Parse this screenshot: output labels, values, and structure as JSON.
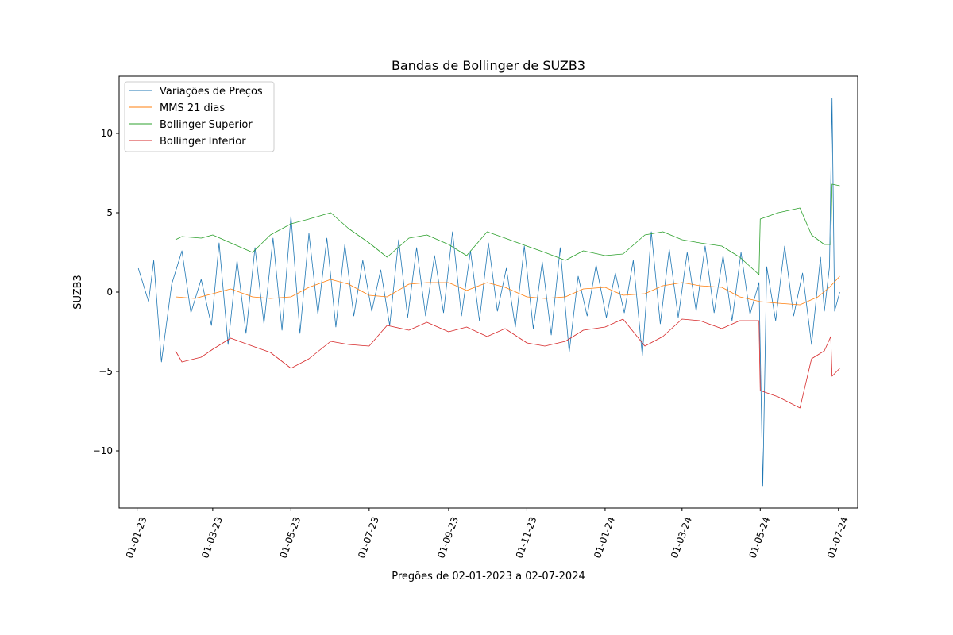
{
  "chart_data": {
    "type": "line",
    "title": "Bandas de Bollinger de SUZB3",
    "xlabel": "Pregões de 02-01-2023 a 02-07-2024",
    "ylabel": "SUZB3",
    "xlim": [
      "2022-12-18",
      "2024-07-16"
    ],
    "ylim": [
      -13.6,
      13.6
    ],
    "yticks": [
      -10,
      -5,
      0,
      5,
      10
    ],
    "yticklabels": [
      "−10",
      "−5",
      "0",
      "5",
      "10"
    ],
    "xticks": [
      "2023-01-01",
      "2023-03-01",
      "2023-05-01",
      "2023-07-01",
      "2023-09-01",
      "2023-11-01",
      "2024-01-01",
      "2024-03-01",
      "2024-05-01",
      "2024-07-01"
    ],
    "xticklabels": [
      "01-01-23",
      "01-03-23",
      "01-05-23",
      "01-07-23",
      "01-09-23",
      "01-11-23",
      "01-01-24",
      "01-03-24",
      "01-05-24",
      "01-07-24"
    ],
    "grid": false,
    "legend_position": "top-left",
    "series": [
      {
        "name": "Variações de Preços",
        "color": "#1f77b4",
        "points": [
          [
            "2023-01-02",
            1.5
          ],
          [
            "2023-01-10",
            -0.6
          ],
          [
            "2023-01-14",
            2.0
          ],
          [
            "2023-01-20",
            -4.4
          ],
          [
            "2023-01-28",
            0.5
          ],
          [
            "2023-02-05",
            2.6
          ],
          [
            "2023-02-12",
            -1.3
          ],
          [
            "2023-02-20",
            0.8
          ],
          [
            "2023-02-28",
            -2.1
          ],
          [
            "2023-03-06",
            3.1
          ],
          [
            "2023-03-13",
            -3.3
          ],
          [
            "2023-03-20",
            2.0
          ],
          [
            "2023-03-27",
            -2.6
          ],
          [
            "2023-04-03",
            2.8
          ],
          [
            "2023-04-10",
            -2.0
          ],
          [
            "2023-04-17",
            3.4
          ],
          [
            "2023-04-24",
            -2.4
          ],
          [
            "2023-05-01",
            4.8
          ],
          [
            "2023-05-08",
            -2.6
          ],
          [
            "2023-05-15",
            3.7
          ],
          [
            "2023-05-22",
            -1.4
          ],
          [
            "2023-05-29",
            3.4
          ],
          [
            "2023-06-05",
            -2.2
          ],
          [
            "2023-06-12",
            3.0
          ],
          [
            "2023-06-19",
            -1.5
          ],
          [
            "2023-06-26",
            2.0
          ],
          [
            "2023-07-03",
            -1.2
          ],
          [
            "2023-07-10",
            1.4
          ],
          [
            "2023-07-17",
            -2.1
          ],
          [
            "2023-07-24",
            3.3
          ],
          [
            "2023-07-31",
            -1.6
          ],
          [
            "2023-08-07",
            2.8
          ],
          [
            "2023-08-14",
            -1.5
          ],
          [
            "2023-08-21",
            2.3
          ],
          [
            "2023-08-28",
            -1.3
          ],
          [
            "2023-09-04",
            3.8
          ],
          [
            "2023-09-11",
            -1.5
          ],
          [
            "2023-09-18",
            2.6
          ],
          [
            "2023-09-25",
            -1.8
          ],
          [
            "2023-10-02",
            3.1
          ],
          [
            "2023-10-09",
            -1.2
          ],
          [
            "2023-10-16",
            1.5
          ],
          [
            "2023-10-23",
            -2.2
          ],
          [
            "2023-10-30",
            2.9
          ],
          [
            "2023-11-06",
            -2.3
          ],
          [
            "2023-11-13",
            1.9
          ],
          [
            "2023-11-20",
            -2.7
          ],
          [
            "2023-11-27",
            2.8
          ],
          [
            "2023-12-04",
            -3.8
          ],
          [
            "2023-12-11",
            1.0
          ],
          [
            "2023-12-18",
            -1.5
          ],
          [
            "2023-12-25",
            1.7
          ],
          [
            "2024-01-02",
            -1.6
          ],
          [
            "2024-01-09",
            1.2
          ],
          [
            "2024-01-16",
            -1.3
          ],
          [
            "2024-01-23",
            2.0
          ],
          [
            "2024-01-30",
            -4.0
          ],
          [
            "2024-02-06",
            3.8
          ],
          [
            "2024-02-13",
            -2.0
          ],
          [
            "2024-02-20",
            2.7
          ],
          [
            "2024-02-27",
            -1.6
          ],
          [
            "2024-03-05",
            2.5
          ],
          [
            "2024-03-12",
            -1.2
          ],
          [
            "2024-03-19",
            2.9
          ],
          [
            "2024-03-26",
            -1.3
          ],
          [
            "2024-04-02",
            2.3
          ],
          [
            "2024-04-09",
            -1.8
          ],
          [
            "2024-04-16",
            2.5
          ],
          [
            "2024-04-23",
            -1.4
          ],
          [
            "2024-04-30",
            0.6
          ],
          [
            "2024-05-03",
            -12.2
          ],
          [
            "2024-05-06",
            1.6
          ],
          [
            "2024-05-13",
            -1.8
          ],
          [
            "2024-05-20",
            2.9
          ],
          [
            "2024-05-27",
            -1.5
          ],
          [
            "2024-06-03",
            1.2
          ],
          [
            "2024-06-10",
            -3.3
          ],
          [
            "2024-06-17",
            2.2
          ],
          [
            "2024-06-20",
            -1.2
          ],
          [
            "2024-06-24",
            1.6
          ],
          [
            "2024-06-26",
            12.2
          ],
          [
            "2024-06-28",
            -1.2
          ],
          [
            "2024-07-02",
            0.0
          ]
        ]
      },
      {
        "name": "MMS 21 dias",
        "color": "#ff7f0e",
        "points": [
          [
            "2023-01-31",
            -0.3
          ],
          [
            "2023-02-15",
            -0.4
          ],
          [
            "2023-03-01",
            -0.1
          ],
          [
            "2023-03-15",
            0.2
          ],
          [
            "2023-04-01",
            -0.3
          ],
          [
            "2023-04-15",
            -0.4
          ],
          [
            "2023-05-01",
            -0.3
          ],
          [
            "2023-05-15",
            0.3
          ],
          [
            "2023-06-01",
            0.8
          ],
          [
            "2023-06-15",
            0.5
          ],
          [
            "2023-07-01",
            -0.2
          ],
          [
            "2023-07-15",
            -0.3
          ],
          [
            "2023-08-01",
            0.5
          ],
          [
            "2023-08-15",
            0.6
          ],
          [
            "2023-09-01",
            0.6
          ],
          [
            "2023-09-15",
            0.1
          ],
          [
            "2023-10-01",
            0.6
          ],
          [
            "2023-10-15",
            0.3
          ],
          [
            "2023-11-01",
            -0.3
          ],
          [
            "2023-11-15",
            -0.4
          ],
          [
            "2023-12-01",
            -0.3
          ],
          [
            "2023-12-15",
            0.2
          ],
          [
            "2024-01-01",
            0.3
          ],
          [
            "2024-01-15",
            -0.2
          ],
          [
            "2024-02-01",
            -0.1
          ],
          [
            "2024-02-15",
            0.4
          ],
          [
            "2024-03-01",
            0.6
          ],
          [
            "2024-03-15",
            0.4
          ],
          [
            "2024-04-01",
            0.3
          ],
          [
            "2024-04-15",
            -0.3
          ],
          [
            "2024-05-01",
            -0.6
          ],
          [
            "2024-05-15",
            -0.7
          ],
          [
            "2024-06-01",
            -0.8
          ],
          [
            "2024-06-15",
            -0.3
          ],
          [
            "2024-06-24",
            0.3
          ],
          [
            "2024-07-02",
            1.0
          ]
        ]
      },
      {
        "name": "Bollinger Superior",
        "color": "#2ca02c",
        "points": [
          [
            "2023-01-31",
            3.3
          ],
          [
            "2023-02-05",
            3.5
          ],
          [
            "2023-02-20",
            3.4
          ],
          [
            "2023-03-01",
            3.6
          ],
          [
            "2023-03-15",
            3.1
          ],
          [
            "2023-04-01",
            2.5
          ],
          [
            "2023-04-15",
            3.6
          ],
          [
            "2023-05-01",
            4.3
          ],
          [
            "2023-05-15",
            4.6
          ],
          [
            "2023-06-01",
            5.0
          ],
          [
            "2023-06-15",
            4.0
          ],
          [
            "2023-07-01",
            3.1
          ],
          [
            "2023-07-15",
            2.2
          ],
          [
            "2023-08-01",
            3.4
          ],
          [
            "2023-08-15",
            3.6
          ],
          [
            "2023-09-01",
            3.0
          ],
          [
            "2023-09-15",
            2.3
          ],
          [
            "2023-10-01",
            3.8
          ],
          [
            "2023-10-15",
            3.4
          ],
          [
            "2023-11-01",
            2.9
          ],
          [
            "2023-11-15",
            2.5
          ],
          [
            "2023-12-01",
            2.0
          ],
          [
            "2023-12-15",
            2.6
          ],
          [
            "2024-01-01",
            2.3
          ],
          [
            "2024-01-15",
            2.4
          ],
          [
            "2024-02-01",
            3.6
          ],
          [
            "2024-02-15",
            3.8
          ],
          [
            "2024-03-01",
            3.3
          ],
          [
            "2024-03-15",
            3.1
          ],
          [
            "2024-04-01",
            2.9
          ],
          [
            "2024-04-15",
            2.2
          ],
          [
            "2024-04-30",
            1.1
          ],
          [
            "2024-05-01",
            4.6
          ],
          [
            "2024-05-15",
            5.0
          ],
          [
            "2024-06-01",
            5.3
          ],
          [
            "2024-06-10",
            3.6
          ],
          [
            "2024-06-20",
            3.0
          ],
          [
            "2024-06-25",
            3.0
          ],
          [
            "2024-06-26",
            6.8
          ],
          [
            "2024-07-02",
            6.7
          ]
        ]
      },
      {
        "name": "Bollinger Inferior",
        "color": "#d62728",
        "points": [
          [
            "2023-01-31",
            -3.7
          ],
          [
            "2023-02-05",
            -4.4
          ],
          [
            "2023-02-20",
            -4.1
          ],
          [
            "2023-03-01",
            -3.6
          ],
          [
            "2023-03-15",
            -2.9
          ],
          [
            "2023-04-01",
            -3.4
          ],
          [
            "2023-04-15",
            -3.8
          ],
          [
            "2023-05-01",
            -4.8
          ],
          [
            "2023-05-15",
            -4.2
          ],
          [
            "2023-06-01",
            -3.1
          ],
          [
            "2023-06-15",
            -3.3
          ],
          [
            "2023-07-01",
            -3.4
          ],
          [
            "2023-07-15",
            -2.1
          ],
          [
            "2023-08-01",
            -2.4
          ],
          [
            "2023-08-15",
            -1.9
          ],
          [
            "2023-09-01",
            -2.5
          ],
          [
            "2023-09-15",
            -2.2
          ],
          [
            "2023-10-01",
            -2.8
          ],
          [
            "2023-10-15",
            -2.3
          ],
          [
            "2023-11-01",
            -3.2
          ],
          [
            "2023-11-15",
            -3.4
          ],
          [
            "2023-12-01",
            -3.1
          ],
          [
            "2023-12-15",
            -2.4
          ],
          [
            "2024-01-01",
            -2.2
          ],
          [
            "2024-01-15",
            -1.7
          ],
          [
            "2024-02-01",
            -3.4
          ],
          [
            "2024-02-15",
            -2.8
          ],
          [
            "2024-03-01",
            -1.7
          ],
          [
            "2024-03-15",
            -1.8
          ],
          [
            "2024-04-01",
            -2.3
          ],
          [
            "2024-04-15",
            -1.8
          ],
          [
            "2024-04-30",
            -1.8
          ],
          [
            "2024-05-01",
            -6.2
          ],
          [
            "2024-05-15",
            -6.6
          ],
          [
            "2024-06-01",
            -7.3
          ],
          [
            "2024-06-10",
            -4.2
          ],
          [
            "2024-06-20",
            -3.7
          ],
          [
            "2024-06-25",
            -2.8
          ],
          [
            "2024-06-26",
            -5.3
          ],
          [
            "2024-07-02",
            -4.8
          ]
        ]
      }
    ]
  }
}
